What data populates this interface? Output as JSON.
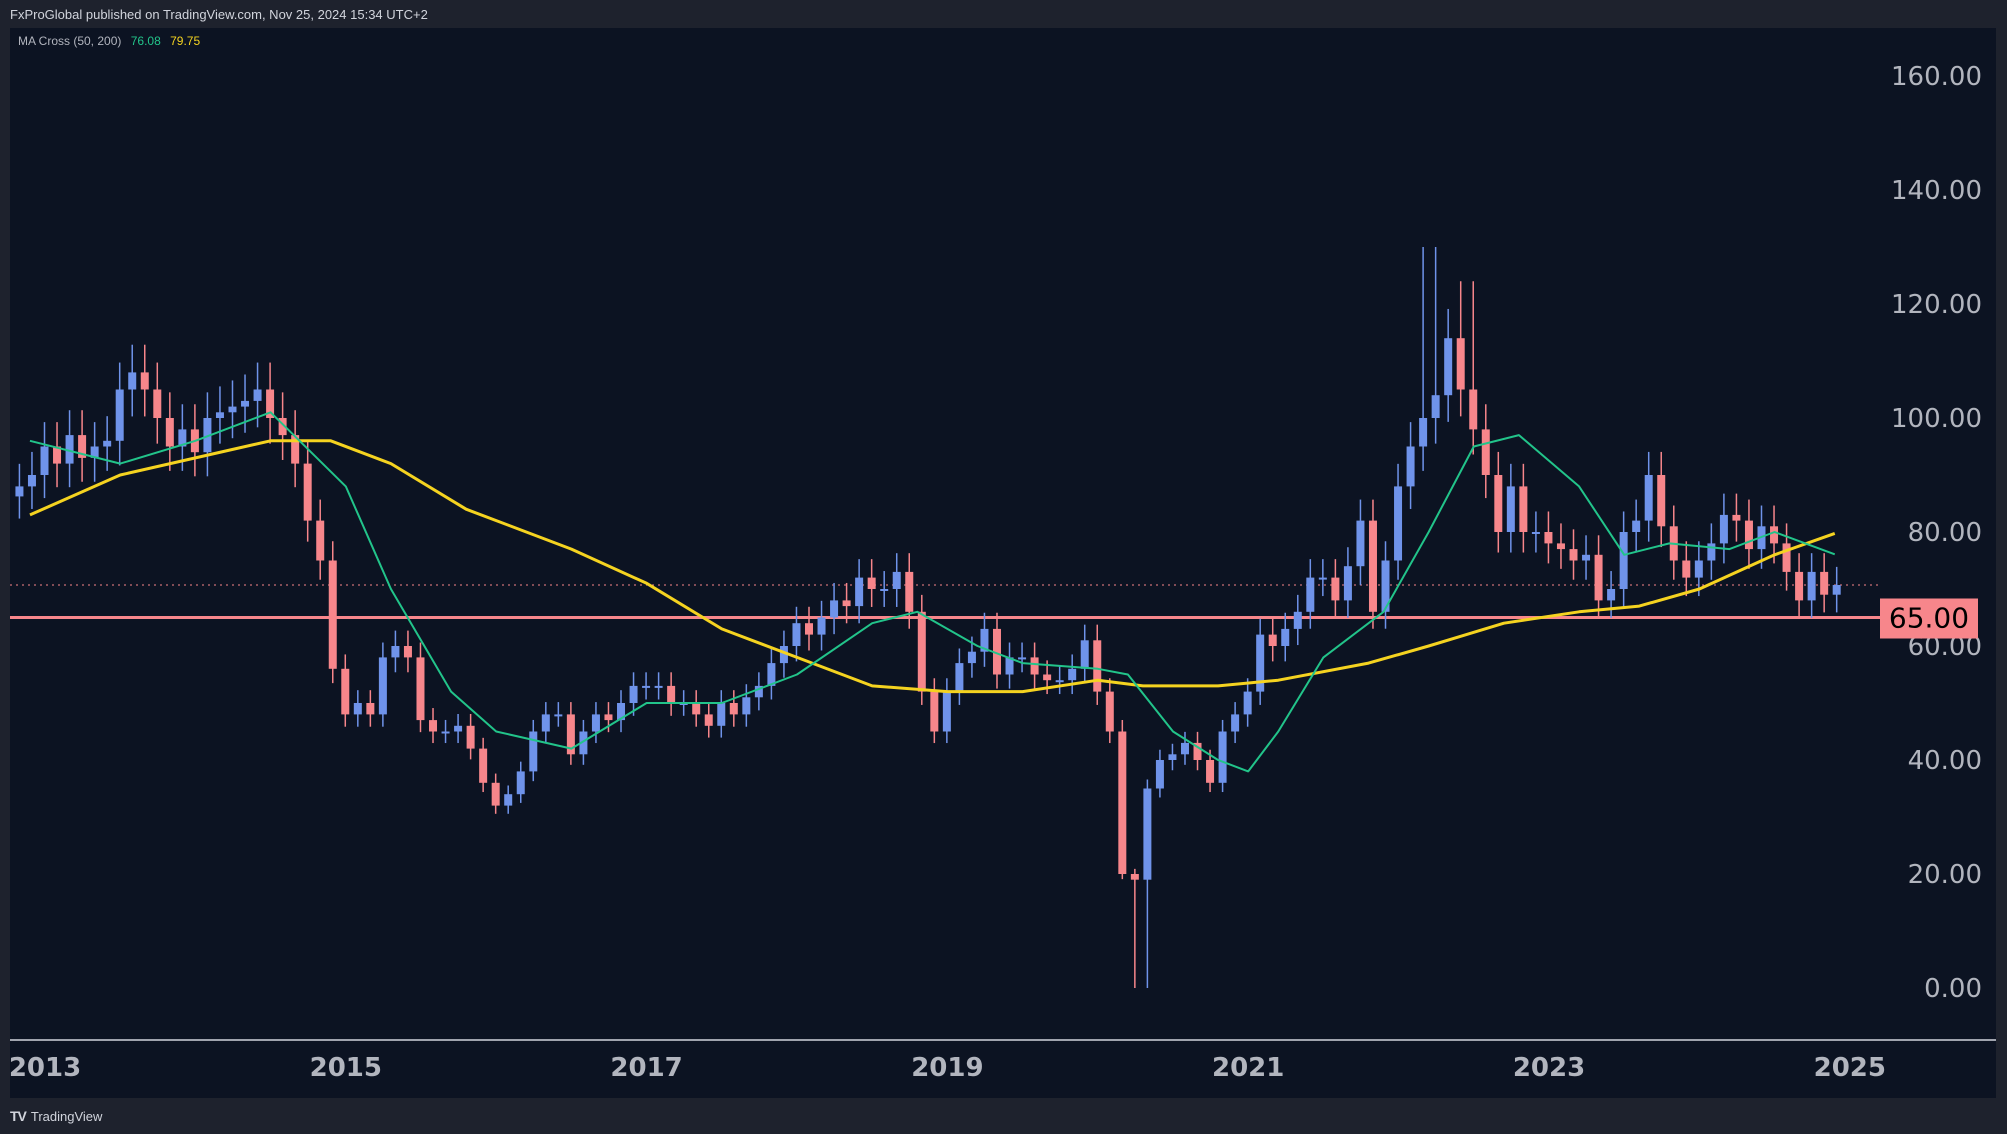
{
  "header": {
    "published": "FxProGlobal published on TradingView.com, Nov 25, 2024 15:34 UTC+2"
  },
  "legend": {
    "name": "MA Cross (50, 200)",
    "ma50_value": "76.08",
    "ma200_value": "79.75"
  },
  "footer": {
    "logo_text": "TradingView"
  },
  "colors": {
    "up": "#6f93ea",
    "down": "#f7868b",
    "ma50": "#22c48a",
    "ma200": "#f5d320",
    "level": "#f7868b",
    "bg": "#0c1322",
    "axis_text": "#b2b5be"
  },
  "chart_data": {
    "type": "candlestick",
    "title": "MA Cross (50, 200)",
    "ylim": [
      0,
      160
    ],
    "y_ticks": [
      "0.00",
      "20.00",
      "40.00",
      "60.00",
      "80.00",
      "100.00",
      "120.00",
      "140.00",
      "160.00"
    ],
    "x_ticks": [
      "2013",
      "2015",
      "2017",
      "2019",
      "2021",
      "2023",
      "2025"
    ],
    "start_year": 2012.83,
    "step_years": 0.08333,
    "closes": [
      88,
      90,
      95,
      92,
      97,
      93,
      95,
      96,
      105,
      108,
      105,
      100,
      95,
      98,
      94,
      100,
      101,
      102,
      103,
      105,
      100,
      97,
      92,
      82,
      75,
      56,
      48,
      50,
      48,
      58,
      60,
      58,
      47,
      45,
      45,
      46,
      42,
      36,
      32,
      34,
      38,
      45,
      48,
      48,
      41,
      45,
      48,
      47,
      50,
      53,
      53,
      53,
      50,
      50,
      48,
      46,
      50,
      48,
      51,
      53,
      57,
      60,
      64,
      62,
      65,
      68,
      67,
      72,
      70,
      70,
      73,
      66,
      52,
      45,
      52,
      57,
      59,
      63,
      55,
      58,
      58,
      55,
      54,
      54,
      56,
      61,
      52,
      45,
      20,
      19,
      35,
      40,
      41,
      43,
      40,
      36,
      45,
      48,
      52,
      62,
      60,
      63,
      66,
      72,
      72,
      68,
      74,
      82,
      66,
      75,
      88,
      95,
      100,
      104,
      114,
      105,
      98,
      90,
      80,
      88,
      80,
      80,
      78,
      77,
      75,
      76,
      68,
      70,
      80,
      82,
      90,
      81,
      75,
      72,
      75,
      78,
      83,
      82,
      77,
      81,
      78,
      73,
      68,
      73,
      69,
      70.7
    ],
    "wick_extremes": [
      {
        "year": 2020.29,
        "low": 0
      },
      {
        "year": 2022.21,
        "high": 130
      },
      {
        "year": 2022.46,
        "high": 124
      }
    ],
    "ma50": [
      [
        2012.9,
        96
      ],
      [
        2013.5,
        92
      ],
      [
        2014.0,
        96
      ],
      [
        2014.5,
        101
      ],
      [
        2015.0,
        88
      ],
      [
        2015.3,
        70
      ],
      [
        2015.7,
        52
      ],
      [
        2016.0,
        45
      ],
      [
        2016.5,
        42
      ],
      [
        2017.0,
        50
      ],
      [
        2017.5,
        50
      ],
      [
        2018.0,
        55
      ],
      [
        2018.5,
        64
      ],
      [
        2018.8,
        66
      ],
      [
        2019.2,
        60
      ],
      [
        2019.5,
        57
      ],
      [
        2020.0,
        56
      ],
      [
        2020.2,
        55
      ],
      [
        2020.5,
        45
      ],
      [
        2020.8,
        40
      ],
      [
        2021.0,
        38
      ],
      [
        2021.2,
        45
      ],
      [
        2021.5,
        58
      ],
      [
        2021.9,
        66
      ],
      [
        2022.2,
        80
      ],
      [
        2022.5,
        95
      ],
      [
        2022.8,
        97
      ],
      [
        2023.2,
        88
      ],
      [
        2023.5,
        76
      ],
      [
        2023.8,
        78
      ],
      [
        2024.2,
        77
      ],
      [
        2024.5,
        80
      ],
      [
        2024.9,
        76.08
      ]
    ],
    "ma200": [
      [
        2012.9,
        83
      ],
      [
        2013.5,
        90
      ],
      [
        2014.0,
        93
      ],
      [
        2014.5,
        96
      ],
      [
        2014.9,
        96
      ],
      [
        2015.3,
        92
      ],
      [
        2015.8,
        84
      ],
      [
        2016.5,
        77
      ],
      [
        2017.0,
        71
      ],
      [
        2017.5,
        63
      ],
      [
        2018.0,
        58
      ],
      [
        2018.5,
        53
      ],
      [
        2019.0,
        52
      ],
      [
        2019.5,
        52
      ],
      [
        2020.0,
        54
      ],
      [
        2020.3,
        53
      ],
      [
        2020.8,
        53
      ],
      [
        2021.2,
        54
      ],
      [
        2021.8,
        57
      ],
      [
        2022.2,
        60
      ],
      [
        2022.7,
        64
      ],
      [
        2023.2,
        66
      ],
      [
        2023.6,
        67
      ],
      [
        2024.0,
        70
      ],
      [
        2024.5,
        76
      ],
      [
        2024.9,
        79.75
      ]
    ],
    "horizontal_level": {
      "value": 65,
      "label": "65.00"
    },
    "last_price": 70.7
  }
}
